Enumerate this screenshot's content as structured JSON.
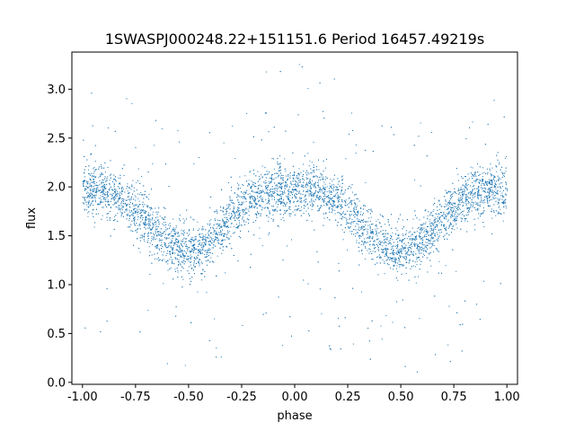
{
  "chart_data": {
    "type": "scatter",
    "title": "1SWASPJ000248.22+151151.6 Period 16457.49219s",
    "xlabel": "phase",
    "ylabel": "flux",
    "xlim": [
      -1.05,
      1.05
    ],
    "ylim": [
      -0.02,
      3.38
    ],
    "xticks": [
      "-1.00",
      "-0.75",
      "-0.50",
      "-0.25",
      "0.00",
      "0.25",
      "0.50",
      "0.75",
      "1.00"
    ],
    "xtick_values": [
      -1.0,
      -0.75,
      -0.5,
      -0.25,
      0.0,
      0.25,
      0.5,
      0.75,
      1.0
    ],
    "yticks": [
      "0.0",
      "0.5",
      "1.0",
      "1.5",
      "2.0",
      "2.5",
      "3.0"
    ],
    "ytick_values": [
      0.0,
      0.5,
      1.0,
      1.5,
      2.0,
      2.5,
      3.0
    ],
    "grid": false,
    "legend": "none",
    "marker_color": "#1f77b4",
    "series": [
      {
        "x": [
          -1.0,
          -0.95,
          -0.9,
          -0.85,
          -0.8,
          -0.75,
          -0.7,
          -0.65,
          -0.6,
          -0.55,
          -0.5,
          -0.45,
          -0.4,
          -0.35,
          -0.3,
          -0.25,
          -0.2,
          -0.15,
          -0.1,
          -0.05,
          0.0,
          0.05,
          0.1,
          0.15,
          0.2,
          0.25,
          0.3,
          0.35,
          0.4,
          0.45,
          0.5,
          0.55,
          0.6,
          0.65,
          0.7,
          0.75,
          0.8,
          0.85,
          0.9,
          0.95,
          1.0
        ],
        "y": [
          1.95,
          1.97,
          1.97,
          1.93,
          1.86,
          1.76,
          1.65,
          1.53,
          1.43,
          1.36,
          1.33,
          1.36,
          1.44,
          1.56,
          1.68,
          1.79,
          1.88,
          1.94,
          1.97,
          1.97,
          1.95,
          1.97,
          1.97,
          1.93,
          1.86,
          1.76,
          1.65,
          1.53,
          1.43,
          1.36,
          1.33,
          1.36,
          1.44,
          1.56,
          1.68,
          1.79,
          1.88,
          1.94,
          1.97,
          1.97,
          1.95
        ]
      }
    ]
  }
}
